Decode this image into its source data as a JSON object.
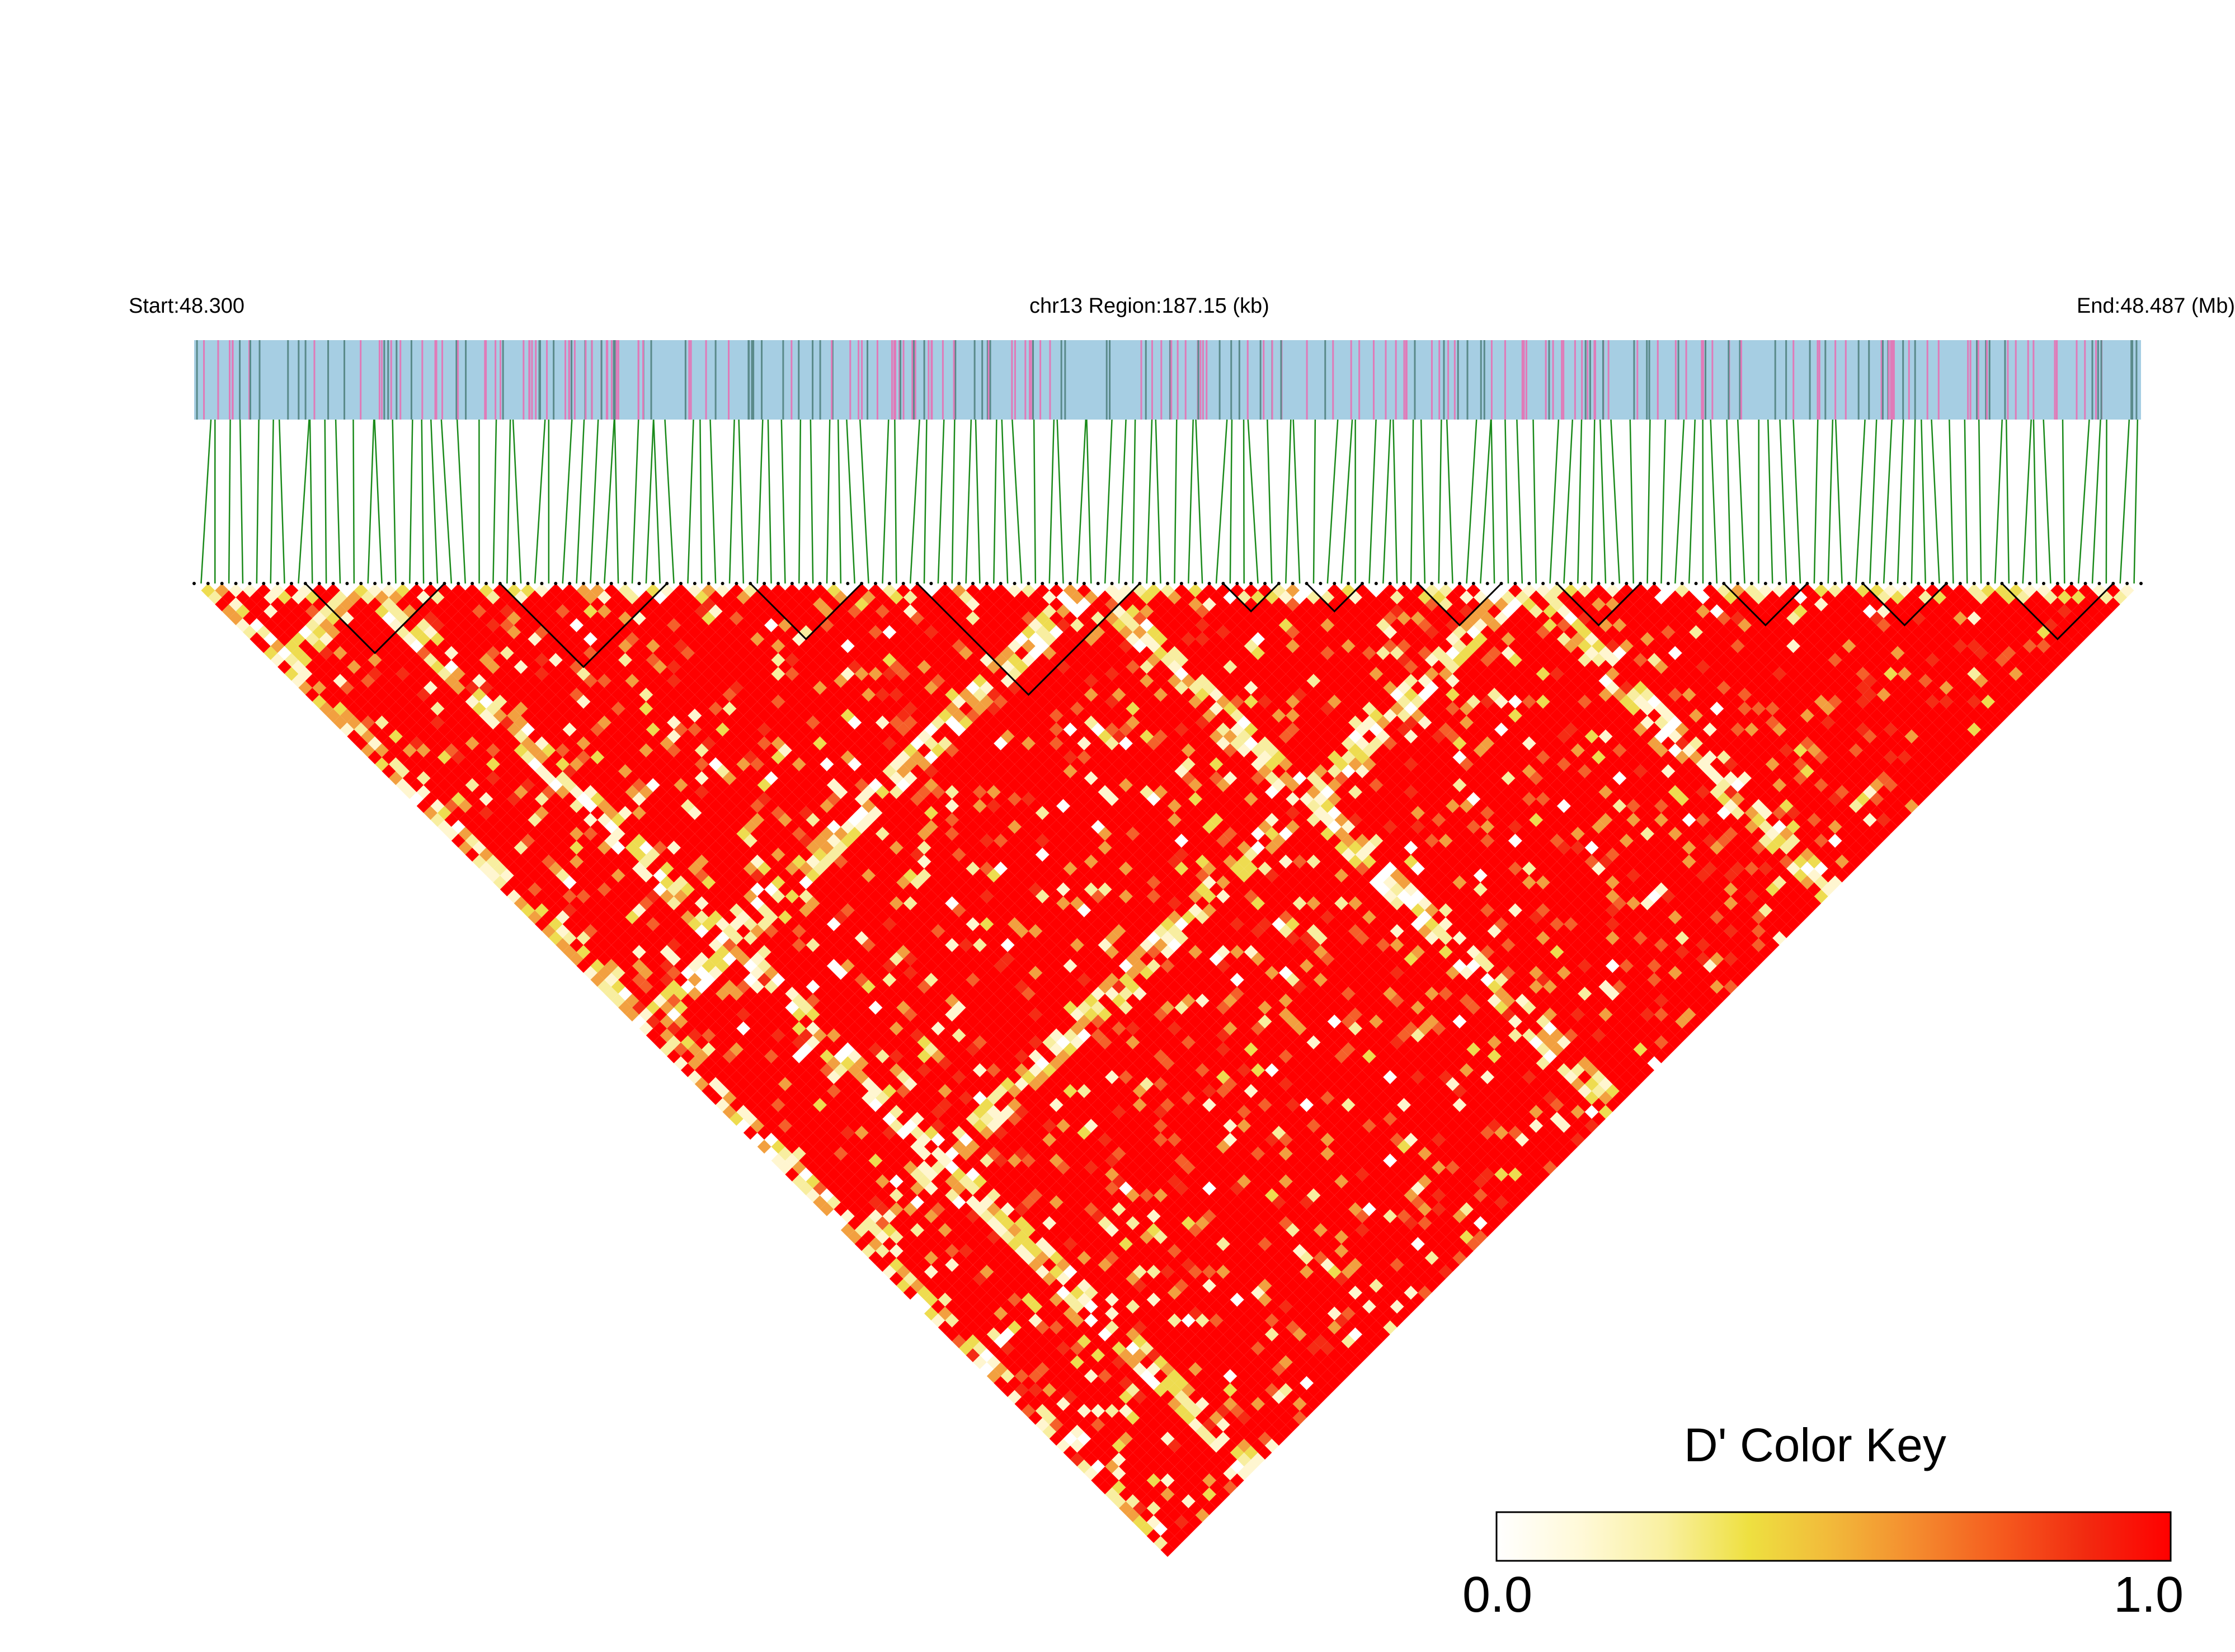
{
  "header": {
    "start_label": "Start:48.300",
    "region_label": "chr13 Region:187.15 (kb)",
    "end_label": "End:48.487 (Mb)"
  },
  "color_key": {
    "title": "D' Color Key",
    "min_label": "0.0",
    "max_label": "1.0",
    "gradient_colors": [
      "#ffffff",
      "#fff9d8",
      "#f9f0a0",
      "#eee040",
      "#f2b83a",
      "#f48a2e",
      "#f55a1e",
      "#f22a10",
      "#ff0000"
    ]
  },
  "colors": {
    "track_background": "#a6cee3",
    "snp_pink": "#e07ab8",
    "snp_dark": "#5a8a8a",
    "connector_green": "#1a8a1a",
    "ld_high": "#ff0000",
    "block_outline": "#000000"
  },
  "chart_data": {
    "type": "heatmap",
    "description": "LD heatmap (D') for SNPs in region chr13 48.300-48.487 Mb",
    "region": {
      "chromosome": "chr13",
      "start_mb": 48.3,
      "end_mb": 48.487,
      "length_kb": 187.15
    },
    "value_range": [
      0.0,
      1.0
    ],
    "snp_count_approx": 240,
    "dominant_value": 1.0
  }
}
